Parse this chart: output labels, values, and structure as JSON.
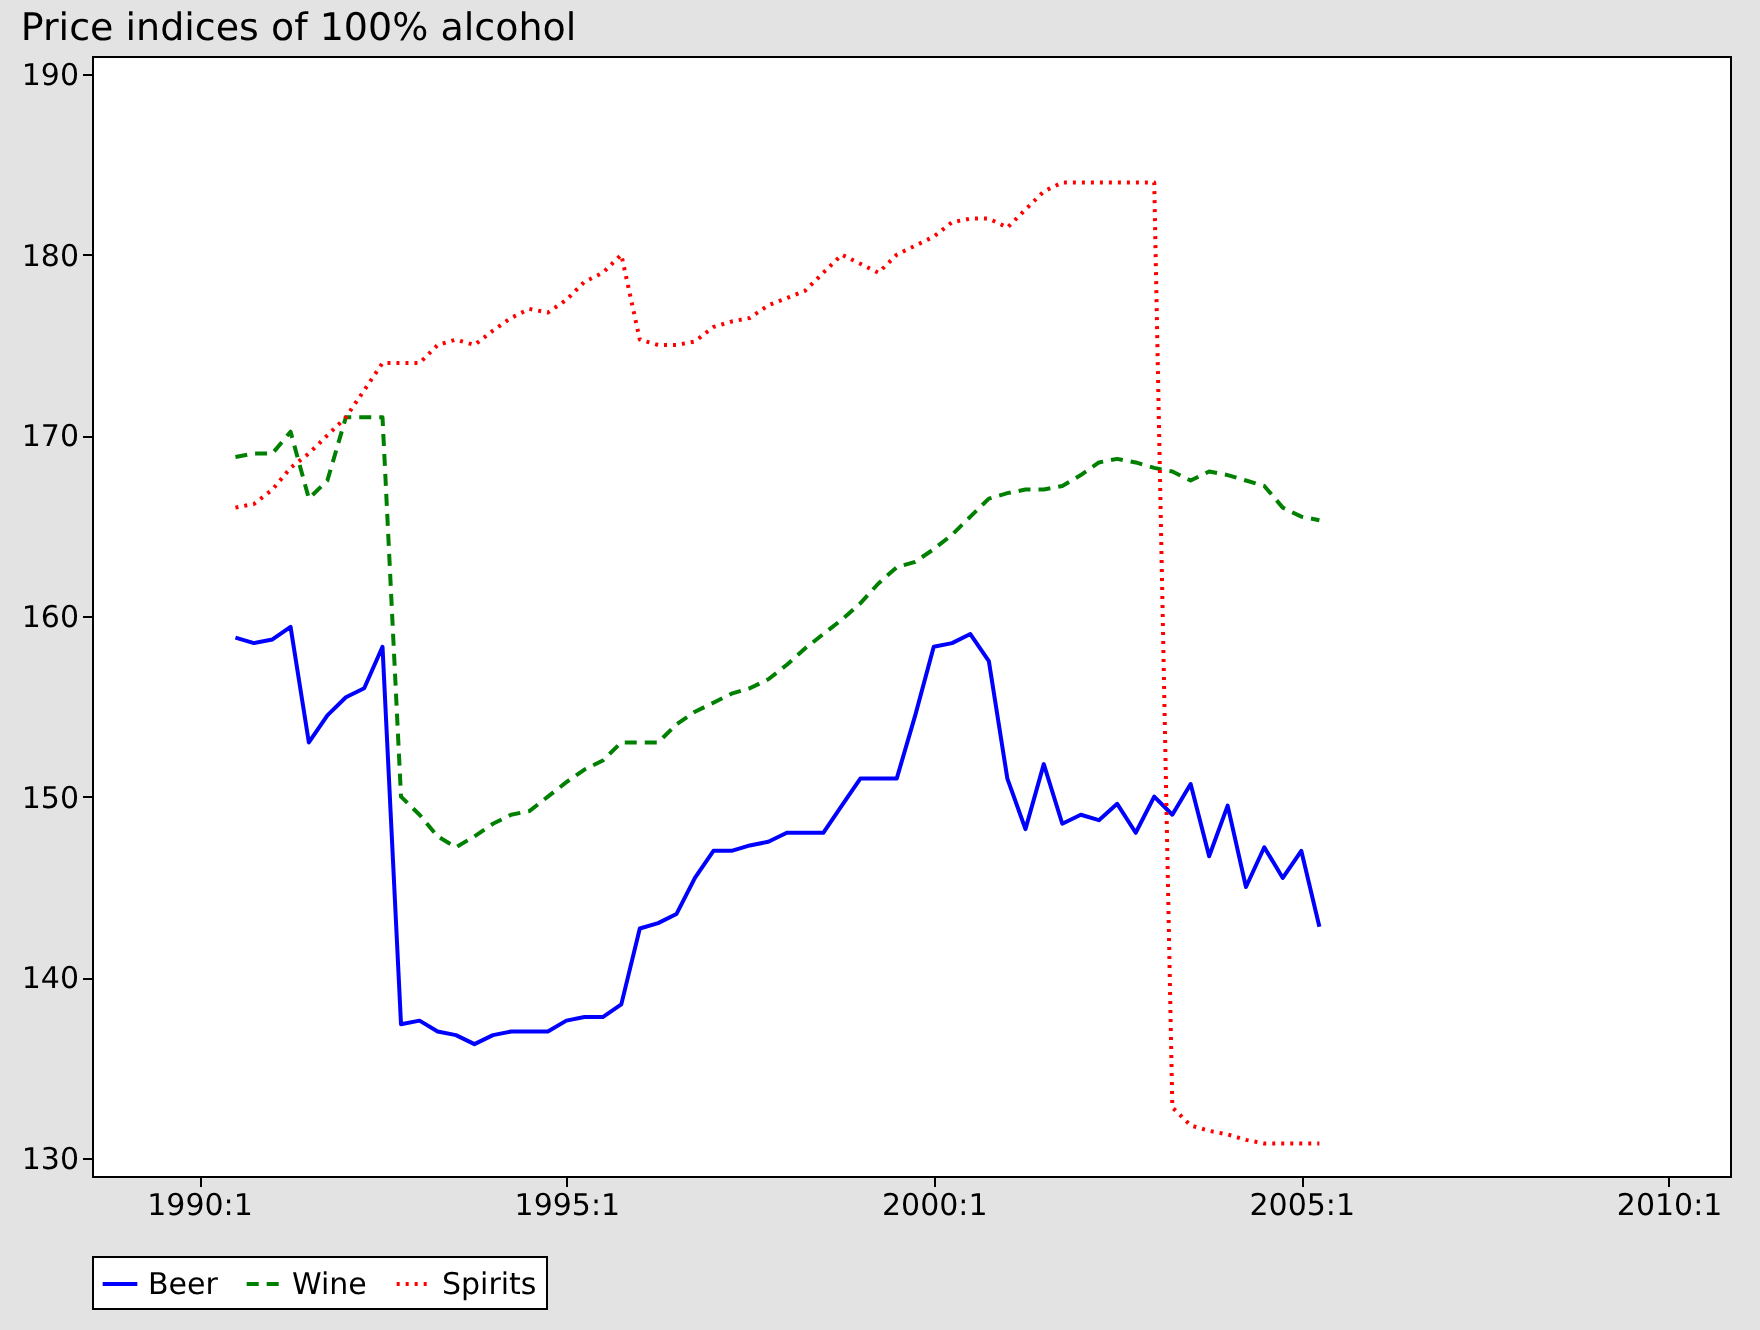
{
  "chart_data": {
    "type": "line",
    "title": "Price indices of 100% alcohol",
    "x": [
      "1990-07",
      "1990-10",
      "1991-01",
      "1991-04",
      "1991-07",
      "1991-10",
      "1992-01",
      "1992-04",
      "1992-07",
      "1992-10",
      "1993-01",
      "1993-04",
      "1993-07",
      "1993-10",
      "1994-01",
      "1994-04",
      "1994-07",
      "1994-10",
      "1995-01",
      "1995-04",
      "1995-07",
      "1995-10",
      "1996-01",
      "1996-04",
      "1996-07",
      "1996-10",
      "1997-01",
      "1997-04",
      "1997-07",
      "1997-10",
      "1998-01",
      "1998-04",
      "1998-07",
      "1998-10",
      "1999-01",
      "1999-04",
      "1999-07",
      "1999-10",
      "2000-01",
      "2000-04",
      "2000-07",
      "2000-10",
      "2001-01",
      "2001-04",
      "2001-07",
      "2001-10",
      "2002-01",
      "2002-04",
      "2002-07",
      "2002-10",
      "2003-01",
      "2003-04",
      "2003-07",
      "2003-10",
      "2004-01",
      "2004-04",
      "2004-07",
      "2004-10",
      "2005-01",
      "2005-04"
    ],
    "series": [
      {
        "name": "Beer",
        "color": "#0000ff",
        "line_style": "solid",
        "values": [
          158.8,
          158.5,
          158.7,
          159.4,
          153,
          154.5,
          155.5,
          156,
          158.3,
          137.4,
          137.6,
          137,
          136.8,
          136.3,
          136.8,
          137,
          137,
          137,
          137.6,
          137.8,
          137.8,
          138.5,
          142.7,
          143,
          143.5,
          145.5,
          147,
          147,
          147.3,
          147.5,
          148,
          148,
          148,
          149.5,
          151,
          151,
          151,
          154.5,
          158.3,
          158.5,
          159,
          157.5,
          151,
          148.2,
          151.8,
          148.5,
          149,
          148.7,
          149.6,
          148,
          150,
          149,
          150.7,
          146.7,
          149.5,
          145,
          147.2,
          145.5,
          147,
          142.8
        ]
      },
      {
        "name": "Wine",
        "color": "#008000",
        "line_style": "dashed",
        "values": [
          168.8,
          169,
          169,
          170.2,
          166.5,
          167.5,
          171,
          171,
          171,
          150,
          149,
          147.8,
          147.2,
          147.8,
          148.5,
          149,
          149.2,
          150,
          150.8,
          151.5,
          152,
          153,
          153,
          153,
          154,
          154.7,
          155.2,
          155.7,
          156,
          156.5,
          157.3,
          158.2,
          159,
          159.8,
          160.7,
          161.8,
          162.7,
          163,
          163.7,
          164.5,
          165.5,
          166.5,
          166.8,
          167,
          167,
          167.2,
          167.8,
          168.5,
          168.7,
          168.5,
          168.2,
          168,
          167.5,
          168,
          167.8,
          167.5,
          167.2,
          166,
          165.5,
          165.3
        ]
      },
      {
        "name": "Spirits",
        "color": "#ff0000",
        "line_style": "dotted",
        "values": [
          166,
          166.2,
          167,
          168.2,
          169,
          170,
          171,
          172.5,
          174,
          174,
          174,
          175,
          175.3,
          175,
          175.8,
          176.5,
          177,
          176.8,
          177.5,
          178.5,
          179,
          180,
          175.3,
          175,
          175,
          175.2,
          176,
          176.3,
          176.5,
          177.2,
          177.6,
          178,
          179,
          180,
          179.5,
          179,
          180,
          180.5,
          181,
          181.8,
          182,
          182,
          181.5,
          182.5,
          183.5,
          184,
          184,
          184,
          184,
          184,
          184,
          132.8,
          131.8,
          131.5,
          131.3,
          131,
          130.8,
          130.8,
          130.8,
          130.8
        ]
      }
    ],
    "xlim": [
      "1988-07-18",
      "2010-11-02"
    ],
    "xticks": [
      {
        "value": "1990-01",
        "label": "1990:1"
      },
      {
        "value": "1995-01",
        "label": "1995:1"
      },
      {
        "value": "2000-01",
        "label": "2000:1"
      },
      {
        "value": "2005-01",
        "label": "2005:1"
      },
      {
        "value": "2010-01",
        "label": "2010:1"
      }
    ],
    "ylim": [
      129,
      191
    ],
    "yticks": [
      130,
      140,
      150,
      160,
      170,
      180,
      190
    ],
    "legend": "bottom",
    "grid": false
  }
}
